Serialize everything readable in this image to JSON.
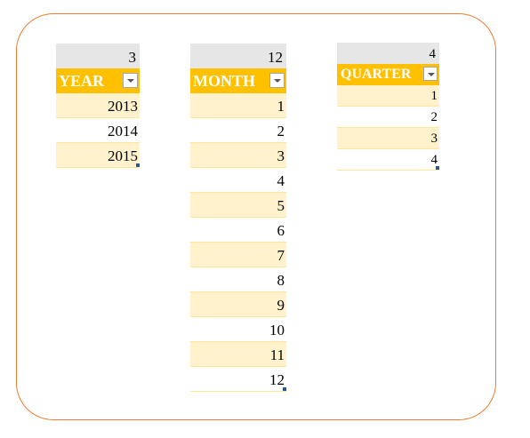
{
  "year_table": {
    "count": "3",
    "header": "YEAR",
    "rows": [
      "2013",
      "2014",
      "2015"
    ]
  },
  "month_table": {
    "count": "12",
    "header": "MONTH",
    "rows": [
      "1",
      "2",
      "3",
      "4",
      "5",
      "6",
      "7",
      "8",
      "9",
      "10",
      "11",
      "12"
    ]
  },
  "quarter_table": {
    "count": "4",
    "header": "QUARTER",
    "rows": [
      "1",
      "2",
      "3",
      "4"
    ]
  },
  "colors": {
    "frame_border": "#ED7D31",
    "header_fill": "#FFC000",
    "band_fill": "#FFF2CC",
    "count_fill": "#E7E6E6"
  }
}
